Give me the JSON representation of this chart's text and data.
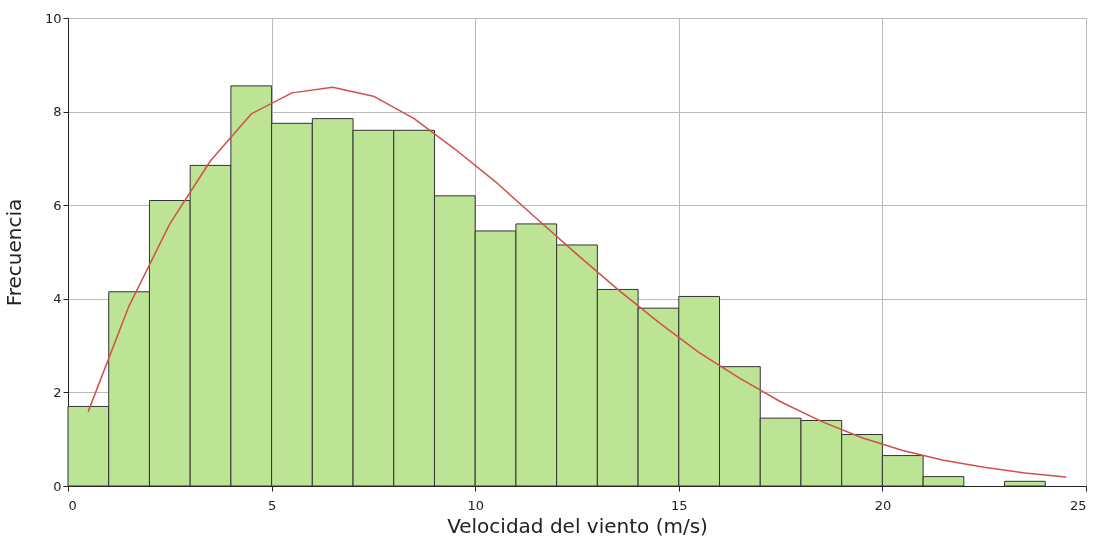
{
  "chart_data": {
    "type": "histogram",
    "xlabel": "Velocidad del viento (m/s)",
    "ylabel": "Frecuencia",
    "bins": [
      0,
      1,
      2,
      3,
      4,
      5,
      6,
      7,
      8,
      9,
      10,
      11,
      12,
      13,
      14,
      15,
      16,
      17,
      18,
      19,
      20,
      21,
      22,
      23,
      24,
      25
    ],
    "values": [
      1.7,
      4.15,
      6.1,
      6.85,
      8.55,
      7.75,
      7.85,
      7.6,
      7.6,
      6.2,
      5.45,
      5.6,
      5.15,
      4.2,
      3.8,
      4.05,
      2.55,
      1.45,
      1.4,
      1.1,
      0.65,
      0.2,
      0,
      0.1,
      0
    ],
    "color": "#bde494",
    "series": [
      {
        "type": "line",
        "color": "#d0504a",
        "x": [
          0.5,
          1.5,
          2.5,
          3.5,
          4.5,
          5.5,
          6.5,
          7.5,
          8.5,
          9.5,
          10.5,
          11.5,
          12.5,
          13.5,
          14.5,
          15.5,
          16.5,
          17.5,
          18.5,
          19.5,
          20.5,
          21.5,
          22.5,
          23.5,
          24.5
        ],
        "values": [
          1.6,
          3.85,
          5.6,
          6.95,
          7.95,
          8.4,
          8.52,
          8.33,
          7.85,
          7.2,
          6.5,
          5.72,
          4.95,
          4.2,
          3.5,
          2.85,
          2.3,
          1.8,
          1.38,
          1.03,
          0.76,
          0.55,
          0.4,
          0.28,
          0.19
        ]
      }
    ],
    "xlim": [
      0,
      25
    ],
    "xticks": [
      0,
      5,
      10,
      15,
      20,
      25
    ],
    "ylim": [
      0,
      10
    ],
    "yticks": [
      0,
      2,
      4,
      6,
      8,
      10
    ],
    "grid": true
  }
}
